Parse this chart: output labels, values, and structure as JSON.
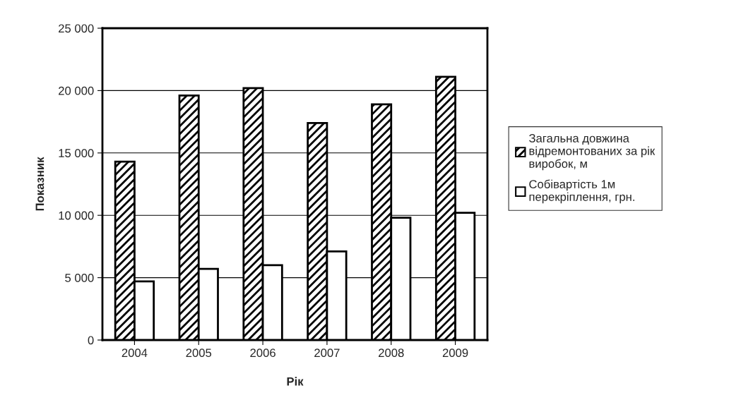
{
  "chart_data": {
    "type": "bar",
    "xlabel": "Рік",
    "ylabel": "Показник",
    "categories": [
      "2004",
      "2005",
      "2006",
      "2007",
      "2008",
      "2009"
    ],
    "series": [
      {
        "name": "Загальна довжина відремонтованих за рік виробок, м",
        "color": "#000000",
        "values": [
          14300,
          19600,
          20200,
          17400,
          18900,
          21100
        ]
      },
      {
        "name": "Собівартість 1м перекріплення, грн.",
        "color": "#ffffff",
        "values": [
          4700,
          5700,
          6000,
          7100,
          9800,
          10200
        ]
      }
    ],
    "ylim": [
      0,
      25000
    ],
    "yticks": [
      0,
      {
        "value": 5000,
        "label": "5 000"
      },
      {
        "value": 10000,
        "label": "10 000"
      },
      {
        "value": 15000,
        "label": "15 000"
      },
      {
        "value": 20000,
        "label": "20 000"
      },
      {
        "value": 25000,
        "label": "25 000"
      }
    ],
    "grid": "y",
    "legend": "right"
  }
}
